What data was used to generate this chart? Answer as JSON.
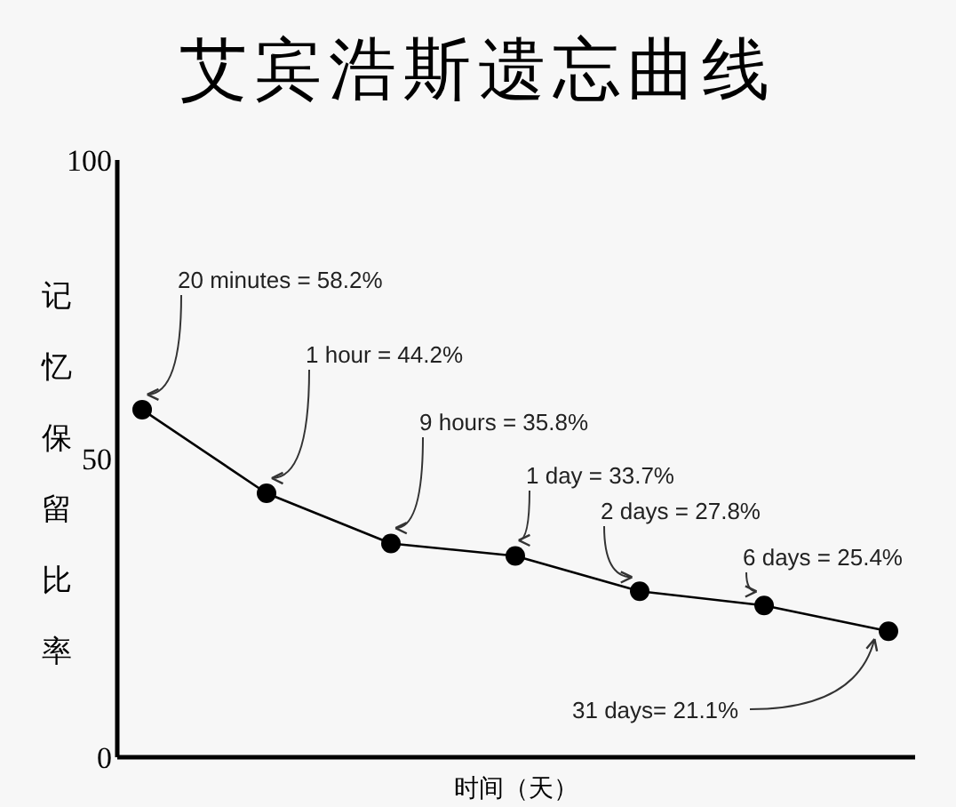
{
  "chart_data": {
    "type": "line",
    "title": "艾宾浩斯遗忘曲线",
    "xlabel": "时间（天）",
    "ylabel": "记忆保留比率",
    "categories": [
      null,
      null,
      null,
      null,
      null,
      null,
      null
    ],
    "series": [
      {
        "color": "#000000",
        "values": [
          58.2,
          44.2,
          35.8,
          33.7,
          27.8,
          25.4,
          21.1
        ]
      }
    ],
    "ylim": [
      0,
      100
    ],
    "yticks": [
      0,
      50,
      100
    ],
    "marker": "circle",
    "line_style": "solid",
    "annotations": [
      "20 minutes = 58.2%",
      "1 hour = 44.2%",
      "9 hours = 35.8%",
      "1 day = 33.7%",
      "2 days = 27.8%",
      "6 days = 25.4%",
      "31 days= 21.1%"
    ]
  }
}
